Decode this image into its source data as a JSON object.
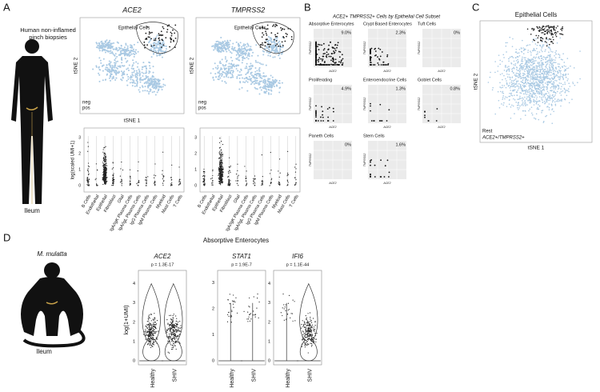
{
  "panel_a": {
    "letter": "A",
    "caption": [
      "Human non-inflamed",
      "pinch biopsies"
    ],
    "tissue": "Ileum",
    "tsne": [
      {
        "gene": "ACE2",
        "region": "Epithelial Cells",
        "ylabel": "tSNE 2",
        "xlabel": "tSNE 1",
        "legend": [
          "neg",
          "pos"
        ]
      },
      {
        "gene": "TMPRSS2",
        "region": "Epithelial Cells",
        "ylabel": "tSNE 2",
        "xlabel": "",
        "legend": [
          "neg",
          "pos"
        ]
      }
    ],
    "violin_ylabel": "log(scaled UMI+1)",
    "violin_yticks": [
      "0",
      "1",
      "2",
      "3"
    ],
    "categories": [
      "B Cells",
      "Endothelial",
      "Epithelial",
      "Fibroblast",
      "Glial",
      "IgA/IgK Plasma Cells",
      "IgA/IgL Plasma Cells",
      "IgG Plasma Cells",
      "IgM Plasma Cells",
      "Myeloid",
      "Mast Cells",
      "T Cells"
    ]
  },
  "panel_b": {
    "letter": "B",
    "title": "ACE2+ TMPRSS2+ Cells by Epithelial Cell Subset",
    "xlabel": "ACE2",
    "ylabel": "TMPRSS2",
    "subsets": [
      {
        "name": "Absorptive Enterocytes",
        "percent": "9.0%"
      },
      {
        "name": "Crypt Based Enterocytes",
        "percent": "2.3%"
      },
      {
        "name": "Tuft Cells",
        "percent": "0%"
      },
      {
        "name": "Proliferating",
        "percent": "4.9%"
      },
      {
        "name": "Enteroendocrine Cells",
        "percent": "1.3%"
      },
      {
        "name": "Goblet Cells",
        "percent": "0.8%"
      },
      {
        "name": "Paneth Cells",
        "percent": "0%"
      },
      {
        "name": "Stem Cells",
        "percent": "1.6%"
      }
    ]
  },
  "panel_c": {
    "letter": "C",
    "title": "Epithelial Cells",
    "ylabel": "tSNE 2",
    "xlabel": "tSNE 1",
    "legend": [
      "Rest",
      "ACE2+/TMPRSS2+"
    ]
  },
  "panel_d": {
    "letter": "D",
    "species": "M. mulatta",
    "tissue": "Ileum",
    "title": "Absorptive Enterocytes",
    "ylabel": "log(1+UMI)",
    "groups": [
      "Healthy",
      "SHIV"
    ],
    "genes": [
      {
        "gene": "ACE2",
        "p": "p = 1.3E-17",
        "yticks": [
          "0",
          "1",
          "2",
          "3",
          "4"
        ]
      },
      {
        "gene": "STAT1",
        "p": "p = 1.9E-7",
        "yticks": [
          "0",
          "1",
          "2",
          "3"
        ]
      },
      {
        "gene": "IFI6",
        "p": "p = 1.1E-44",
        "yticks": [
          "0",
          "1",
          "2",
          "3",
          "4"
        ]
      }
    ]
  }
}
